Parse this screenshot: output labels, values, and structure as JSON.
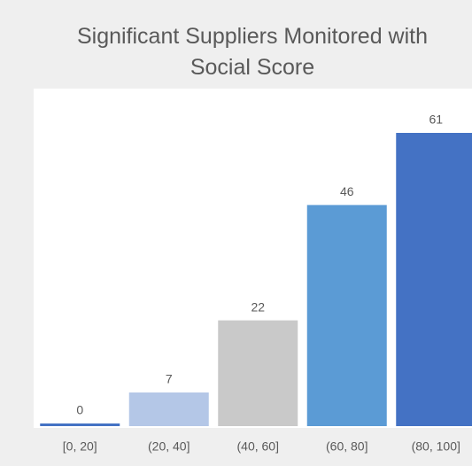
{
  "chart_data": {
    "type": "bar",
    "title": "Significant Suppliers Monitored with Social Score",
    "categories": [
      "[0, 20]",
      "(20, 40]",
      "(40, 60]",
      "(60, 80]",
      "(80, 100]"
    ],
    "values": [
      0,
      7,
      22,
      46,
      61
    ],
    "colors": [
      "#4472c4",
      "#b4c7e7",
      "#c9c9c9",
      "#5b9bd5",
      "#4472c4"
    ]
  }
}
